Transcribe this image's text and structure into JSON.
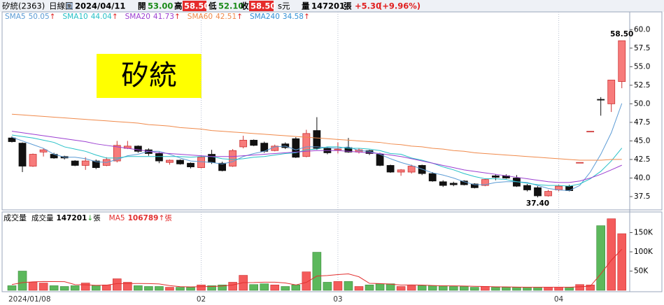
{
  "header": {
    "stock": "矽統(2363)",
    "period": "日線圖",
    "date": "2024/04/11",
    "open_label": "開",
    "open": "53.00",
    "high_label": "高",
    "high": "58.50",
    "low_label": "低",
    "low": "52.10",
    "close_label": "收",
    "close": "58.50",
    "unit": "s元",
    "vol_label": "量",
    "volume": "147201",
    "vol_unit": "張",
    "change": "+5.30",
    "change_pct": "(+9.96%)"
  },
  "chart_data": [
    {
      "type": "candlestick",
      "title": "矽統",
      "open": [
        45.4,
        44.7,
        41.6,
        43.5,
        43.2,
        42.9,
        42.3,
        41.7,
        42.3,
        41.7,
        42.3,
        44.0,
        44.3,
        43.8,
        43.3,
        42.1,
        42.4,
        42.0,
        41.4,
        43.2,
        42.0,
        41.6,
        44.2,
        45.1,
        44.7,
        43.7,
        44.6,
        45.3,
        42.9,
        46.4,
        44.0,
        43.8,
        44.1,
        43.5,
        43.7,
        43.2,
        41.7,
        40.8,
        40.8,
        41.7,
        40.6,
        39.5,
        39.3,
        39.6,
        39.2,
        39.0,
        40.3,
        40.3,
        40.0,
        39.0,
        38.7,
        37.6,
        38.4,
        38.9,
        42.1,
        46.3,
        50.6,
        50.0,
        53.0
      ],
      "high": [
        45.6,
        44.8,
        43.3,
        44.0,
        43.4,
        43.0,
        42.4,
        42.8,
        42.5,
        42.8,
        45.0,
        45.0,
        44.4,
        44.0,
        43.5,
        42.5,
        42.5,
        42.1,
        43.0,
        43.8,
        42.2,
        43.9,
        45.7,
        45.2,
        44.9,
        44.5,
        44.8,
        45.5,
        46.5,
        48.2,
        44.2,
        44.8,
        45.4,
        44.0,
        43.8,
        43.4,
        41.8,
        41.2,
        41.8,
        41.8,
        40.8,
        39.7,
        39.5,
        39.7,
        39.3,
        39.9,
        40.5,
        40.5,
        40.4,
        39.2,
        38.9,
        38.4,
        39.1,
        39.1,
        42.1,
        46.3,
        50.9,
        53.2,
        58.5
      ],
      "low": [
        44.8,
        40.8,
        41.5,
        42.9,
        42.6,
        42.5,
        41.6,
        41.1,
        41.2,
        41.6,
        42.1,
        43.9,
        43.4,
        43.0,
        42.0,
        41.8,
        41.8,
        41.3,
        41.3,
        41.9,
        40.9,
        41.5,
        44.0,
        44.3,
        43.4,
        43.6,
        43.9,
        42.7,
        42.8,
        43.8,
        43.2,
        43.3,
        43.4,
        43.3,
        43.1,
        41.6,
        40.7,
        40.3,
        40.6,
        40.4,
        39.5,
        38.8,
        38.9,
        39.0,
        38.6,
        38.9,
        39.7,
        39.9,
        38.8,
        38.2,
        37.4,
        37.5,
        38.2,
        38.2,
        42.1,
        46.3,
        48.4,
        48.9,
        52.1
      ],
      "close": [
        44.9,
        41.6,
        43.2,
        43.8,
        42.7,
        42.7,
        41.7,
        42.3,
        41.4,
        42.5,
        44.4,
        44.3,
        43.6,
        43.3,
        42.3,
        42.4,
        41.9,
        41.5,
        42.8,
        42.1,
        41.0,
        43.7,
        45.1,
        44.4,
        43.6,
        44.3,
        44.1,
        42.8,
        46.0,
        44.0,
        43.4,
        43.9,
        43.5,
        43.8,
        43.3,
        41.7,
        40.8,
        41.1,
        41.6,
        40.6,
        39.6,
        39.0,
        39.1,
        39.1,
        38.7,
        39.8,
        40.1,
        40.0,
        38.9,
        38.4,
        37.6,
        38.2,
        38.9,
        38.3,
        42.1,
        46.3,
        50.5,
        53.2,
        58.5
      ],
      "up_color": "#f77b7b",
      "down_color": "#111111",
      "series": [
        {
          "name": "SMA5",
          "color": "#5b9bd5",
          "legend_value": "50.05",
          "trend": "↑",
          "values": [
            45.5,
            45.0,
            44.5,
            44.0,
            43.2,
            42.8,
            42.8,
            42.6,
            42.2,
            42.1,
            42.5,
            43.0,
            43.2,
            43.6,
            43.6,
            43.2,
            42.7,
            42.3,
            42.2,
            42.1,
            41.9,
            42.2,
            42.9,
            43.3,
            43.6,
            44.2,
            44.3,
            43.8,
            44.2,
            44.2,
            44.1,
            44.0,
            44.2,
            43.7,
            43.6,
            43.2,
            42.6,
            42.1,
            41.7,
            41.2,
            40.7,
            40.4,
            40.0,
            39.5,
            39.1,
            39.1,
            39.4,
            39.5,
            39.5,
            39.4,
            39.0,
            38.6,
            38.4,
            38.3,
            39.0,
            40.8,
            43.2,
            46.1,
            50.05
          ]
        },
        {
          "name": "SMA10",
          "color": "#26c0c7",
          "legend_value": "44.04",
          "trend": "↑",
          "values": [
            45.8,
            45.6,
            45.4,
            45.1,
            44.8,
            44.2,
            43.9,
            43.6,
            43.1,
            42.7,
            42.7,
            42.9,
            42.9,
            42.9,
            42.9,
            42.9,
            42.9,
            42.8,
            42.9,
            42.9,
            42.6,
            42.5,
            42.6,
            42.8,
            42.9,
            43.1,
            43.3,
            43.4,
            43.8,
            43.9,
            44.2,
            44.2,
            44.0,
            44.0,
            43.9,
            43.7,
            43.3,
            43.2,
            42.7,
            42.4,
            42.0,
            41.5,
            41.1,
            40.6,
            40.2,
            39.9,
            39.9,
            39.8,
            39.5,
            39.3,
            39.1,
            39.0,
            39.0,
            38.9,
            39.2,
            39.9,
            40.9,
            42.3,
            44.04
          ]
        },
        {
          "name": "SMA20",
          "color": "#9b3fd1",
          "legend_value": "41.73",
          "trend": "↑",
          "values": [
            46.3,
            46.1,
            45.9,
            45.7,
            45.5,
            45.3,
            45.1,
            44.9,
            44.6,
            44.4,
            44.2,
            44.0,
            43.8,
            43.6,
            43.4,
            43.3,
            43.2,
            43.1,
            43.0,
            42.9,
            42.9,
            42.9,
            43.0,
            43.1,
            43.2,
            43.3,
            43.4,
            43.5,
            43.6,
            43.7,
            43.7,
            43.7,
            43.6,
            43.5,
            43.4,
            43.3,
            43.1,
            42.9,
            42.6,
            42.3,
            42.0,
            41.7,
            41.4,
            41.1,
            40.9,
            40.7,
            40.5,
            40.3,
            40.1,
            39.9,
            39.7,
            39.5,
            39.4,
            39.4,
            39.6,
            40.0,
            40.5,
            41.1,
            41.73
          ]
        },
        {
          "name": "SMA60",
          "color": "#f08a4b",
          "legend_value": "42.51",
          "trend": "↑",
          "values": [
            48.6,
            48.5,
            48.4,
            48.3,
            48.2,
            48.1,
            48.0,
            47.9,
            47.8,
            47.7,
            47.6,
            47.5,
            47.4,
            47.2,
            47.1,
            47.0,
            46.8,
            46.7,
            46.6,
            46.4,
            46.3,
            46.2,
            46.1,
            46.0,
            45.9,
            45.8,
            45.7,
            45.6,
            45.5,
            45.4,
            45.3,
            45.2,
            45.1,
            45.0,
            44.9,
            44.8,
            44.6,
            44.5,
            44.3,
            44.2,
            44.0,
            43.9,
            43.7,
            43.6,
            43.4,
            43.3,
            43.2,
            43.1,
            43.0,
            42.9,
            42.8,
            42.7,
            42.6,
            42.5,
            42.4,
            42.4,
            42.4,
            42.5,
            42.51
          ]
        }
      ],
      "legend_extra": [
        {
          "name": "SMA240",
          "color": "#2f8fd6",
          "legend_value": "34.58",
          "trend": "↑"
        }
      ],
      "trend_color": "#e02020",
      "annotations": [
        {
          "text": "58.50",
          "value": 58.5,
          "index": 58,
          "anchor": "high"
        },
        {
          "text": "37.40",
          "value": 37.4,
          "index": 50,
          "anchor": "low"
        }
      ],
      "ylim": [
        35.9,
        62.1
      ],
      "yticks": [
        37.5,
        {
          "value": 40,
          "label": "40.0"
        },
        42.5,
        {
          "value": 45,
          "label": "45.0"
        },
        47.5,
        {
          "value": 50,
          "label": "50.0"
        },
        52.5,
        {
          "value": 55,
          "label": "55.0"
        },
        57.5,
        {
          "value": 60,
          "label": "60.0"
        }
      ]
    },
    {
      "type": "bar",
      "title": "成交量",
      "categories": [
        "2024/01/08",
        null,
        null,
        null,
        null,
        null,
        null,
        null,
        null,
        null,
        null,
        null,
        null,
        null,
        null,
        null,
        null,
        null,
        "02",
        null,
        null,
        null,
        null,
        null,
        null,
        null,
        null,
        null,
        null,
        null,
        null,
        "03",
        null,
        null,
        null,
        null,
        null,
        null,
        null,
        null,
        null,
        null,
        null,
        null,
        null,
        null,
        null,
        null,
        null,
        null,
        null,
        null,
        "04",
        null,
        null,
        null,
        null,
        null,
        null
      ],
      "up_color": "#f45b5b",
      "down_color": "#5cb85c",
      "series": [
        {
          "name": "成交量",
          "legend_value": "147201",
          "trend": "↓",
          "trend_color": "#2a9d2a",
          "unit": "張",
          "values": [
            12000,
            50000,
            21000,
            19000,
            12000,
            10000,
            12000,
            19000,
            12000,
            14000,
            30000,
            21000,
            12000,
            10000,
            10000,
            8000,
            8000,
            8000,
            14000,
            12000,
            14000,
            21000,
            39000,
            15000,
            17000,
            14000,
            10000,
            14000,
            48000,
            99000,
            21000,
            23000,
            23000,
            10000,
            14000,
            17000,
            17000,
            10000,
            12000,
            12000,
            12000,
            12000,
            10000,
            10000,
            8000,
            10000,
            8000,
            8000,
            8000,
            8000,
            8000,
            8000,
            8000,
            8000,
            15000,
            14000,
            168000,
            186000,
            147201
          ]
        },
        {
          "name": "MA5",
          "color": "#e23030",
          "legend_value": "106789",
          "trend": "↑",
          "trend_color": "#e02020",
          "unit": "張",
          "values": [
            15000,
            20000,
            22000,
            23000,
            22800,
            22400,
            14800,
            14400,
            13000,
            13400,
            17400,
            17600,
            17800,
            17400,
            16600,
            12200,
            9600,
            8800,
            9600,
            10000,
            11200,
            13800,
            20000,
            20200,
            21200,
            21200,
            19000,
            14000,
            20600,
            37000,
            38400,
            41000,
            42800,
            35200,
            18200,
            17400,
            16200,
            13600,
            14000,
            13600,
            12600,
            11600,
            11600,
            11200,
            10400,
            10000,
            9200,
            8800,
            8400,
            8000,
            8000,
            8000,
            8000,
            8000,
            9400,
            10600,
            42600,
            78200,
            106789
          ]
        }
      ],
      "ylim": [
        0,
        200000
      ],
      "yticks": [
        {
          "value": 50000,
          "label": "50K"
        },
        {
          "value": 100000,
          "label": "100K"
        },
        {
          "value": 150000,
          "label": "150K"
        }
      ]
    }
  ]
}
